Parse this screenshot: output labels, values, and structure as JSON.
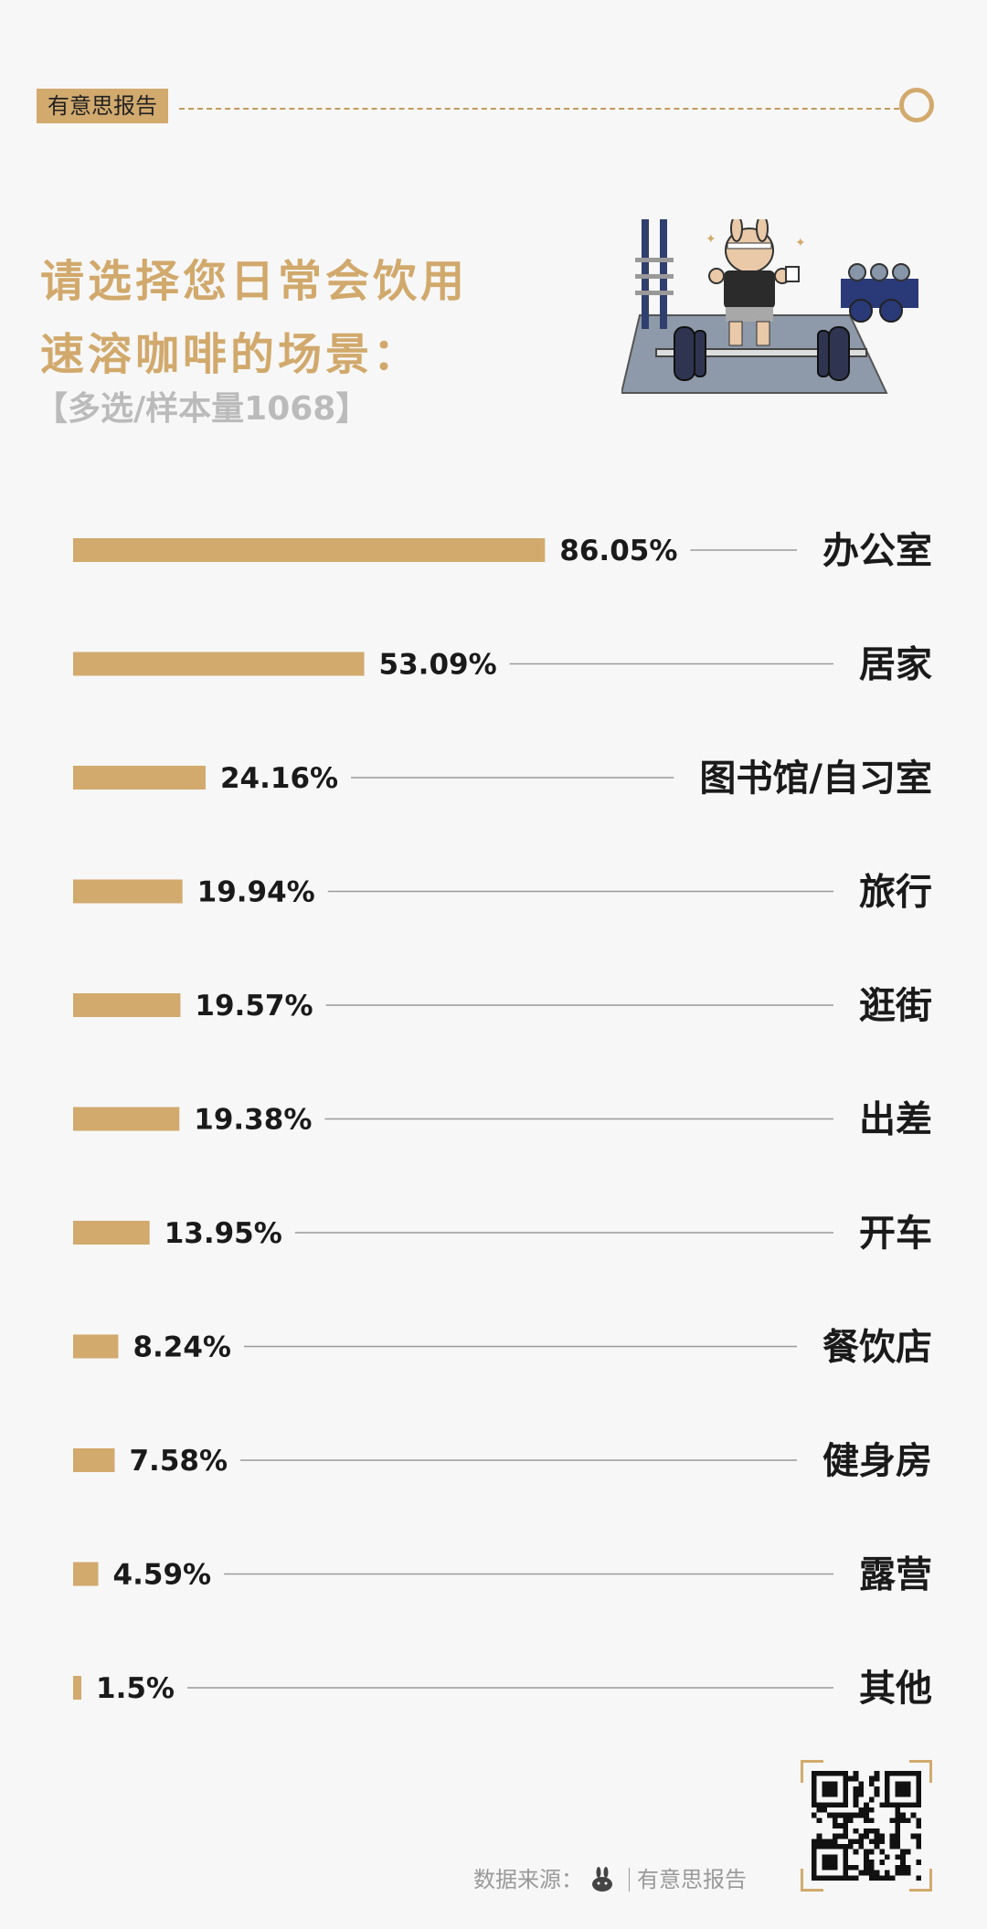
{
  "header": {
    "tag": "有意思报告"
  },
  "title": {
    "line1": "请选择您日常会饮用",
    "line2": "速溶咖啡的场景："
  },
  "subtitle": "【多选/样本量1068】",
  "chart_data": {
    "type": "bar",
    "orientation": "horizontal",
    "categories": [
      "办公室",
      "居家",
      "图书馆/自习室",
      "旅行",
      "逛街",
      "出差",
      "开车",
      "餐饮店",
      "健身房",
      "露营",
      "其他"
    ],
    "values": [
      86.05,
      53.09,
      24.16,
      19.94,
      19.57,
      19.38,
      13.95,
      8.24,
      7.58,
      4.59,
      1.5
    ],
    "value_labels": [
      "86.05%",
      "53.09%",
      "24.16%",
      "19.94%",
      "19.57%",
      "19.38%",
      "13.95%",
      "8.24%",
      "7.58%",
      "4.59%",
      "1.5%"
    ],
    "bar_color": "#d2aa6e",
    "legend": "none",
    "grid": false
  },
  "footer": {
    "source_label": "数据来源：",
    "source_name": "有意思报告"
  },
  "colors": {
    "accent": "#d2aa6e",
    "title": "#d1a96c",
    "text": "#1a1a1a"
  }
}
